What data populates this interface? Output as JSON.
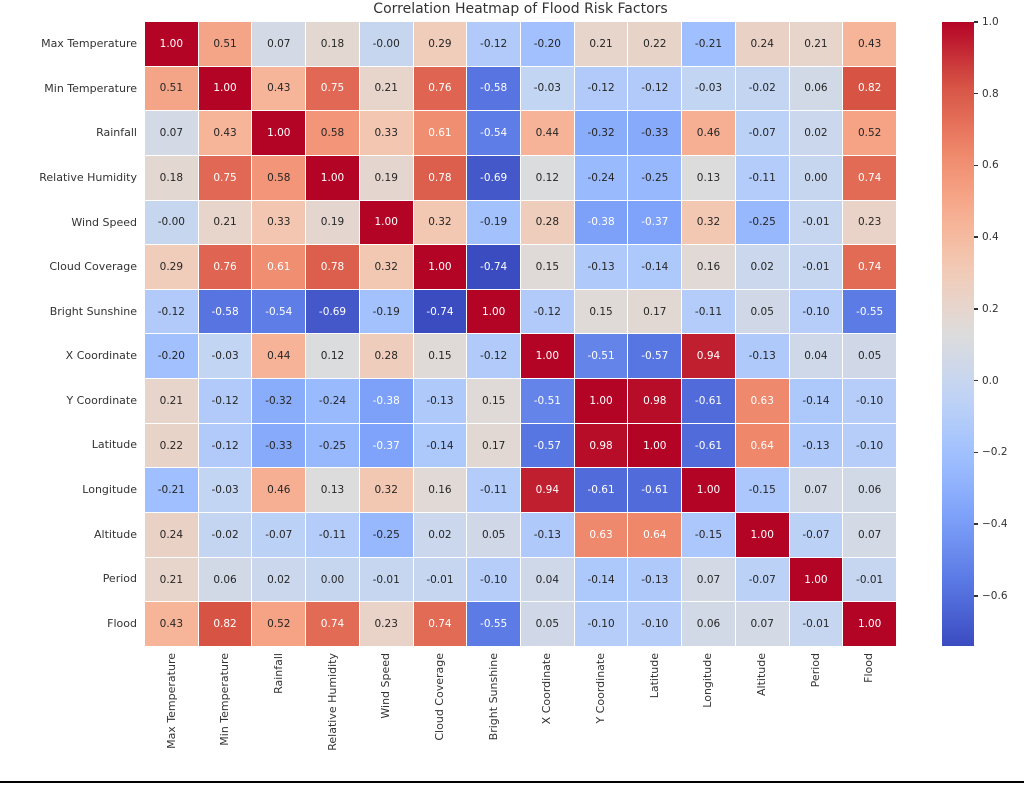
{
  "chart_data": {
    "type": "heatmap",
    "title": "Correlation Heatmap of Flood Risk Factors",
    "categories": [
      "Max Temperature",
      "Min Temperature",
      "Rainfall",
      "Relative Humidity",
      "Wind Speed",
      "Cloud Coverage",
      "Bright Sunshine",
      "X Coordinate",
      "Y Coordinate",
      "Latitude",
      "Longitude",
      "Altitude",
      "Period",
      "Flood"
    ],
    "values": [
      [
        "1.00",
        "0.51",
        "0.07",
        "0.18",
        "-0.00",
        "0.29",
        "-0.12",
        "-0.20",
        "0.21",
        "0.22",
        "-0.21",
        "0.24",
        "0.21",
        "0.43"
      ],
      [
        "0.51",
        "1.00",
        "0.43",
        "0.75",
        "0.21",
        "0.76",
        "-0.58",
        "-0.03",
        "-0.12",
        "-0.12",
        "-0.03",
        "-0.02",
        "0.06",
        "0.82"
      ],
      [
        "0.07",
        "0.43",
        "1.00",
        "0.58",
        "0.33",
        "0.61",
        "-0.54",
        "0.44",
        "-0.32",
        "-0.33",
        "0.46",
        "-0.07",
        "0.02",
        "0.52"
      ],
      [
        "0.18",
        "0.75",
        "0.58",
        "1.00",
        "0.19",
        "0.78",
        "-0.69",
        "0.12",
        "-0.24",
        "-0.25",
        "0.13",
        "-0.11",
        "0.00",
        "0.74"
      ],
      [
        "-0.00",
        "0.21",
        "0.33",
        "0.19",
        "1.00",
        "0.32",
        "-0.19",
        "0.28",
        "-0.38",
        "-0.37",
        "0.32",
        "-0.25",
        "-0.01",
        "0.23"
      ],
      [
        "0.29",
        "0.76",
        "0.61",
        "0.78",
        "0.32",
        "1.00",
        "-0.74",
        "0.15",
        "-0.13",
        "-0.14",
        "0.16",
        "0.02",
        "-0.01",
        "0.74"
      ],
      [
        "-0.12",
        "-0.58",
        "-0.54",
        "-0.69",
        "-0.19",
        "-0.74",
        "1.00",
        "-0.12",
        "0.15",
        "0.17",
        "-0.11",
        "0.05",
        "-0.10",
        "-0.55"
      ],
      [
        "-0.20",
        "-0.03",
        "0.44",
        "0.12",
        "0.28",
        "0.15",
        "-0.12",
        "1.00",
        "-0.51",
        "-0.57",
        "0.94",
        "-0.13",
        "0.04",
        "0.05"
      ],
      [
        "0.21",
        "-0.12",
        "-0.32",
        "-0.24",
        "-0.38",
        "-0.13",
        "0.15",
        "-0.51",
        "1.00",
        "0.98",
        "-0.61",
        "0.63",
        "-0.14",
        "-0.10"
      ],
      [
        "0.22",
        "-0.12",
        "-0.33",
        "-0.25",
        "-0.37",
        "-0.14",
        "0.17",
        "-0.57",
        "0.98",
        "1.00",
        "-0.61",
        "0.64",
        "-0.13",
        "-0.10"
      ],
      [
        "-0.21",
        "-0.03",
        "0.46",
        "0.13",
        "0.32",
        "0.16",
        "-0.11",
        "0.94",
        "-0.61",
        "-0.61",
        "1.00",
        "-0.15",
        "0.07",
        "0.06"
      ],
      [
        "0.24",
        "-0.02",
        "-0.07",
        "-0.11",
        "-0.25",
        "0.02",
        "0.05",
        "-0.13",
        "0.63",
        "0.64",
        "-0.15",
        "1.00",
        "-0.07",
        "0.07"
      ],
      [
        "0.21",
        "0.06",
        "0.02",
        "0.00",
        "-0.01",
        "-0.01",
        "-0.10",
        "0.04",
        "-0.14",
        "-0.13",
        "0.07",
        "-0.07",
        "1.00",
        "-0.01"
      ],
      [
        "0.43",
        "0.82",
        "0.52",
        "0.74",
        "0.23",
        "0.74",
        "-0.55",
        "0.05",
        "-0.10",
        "-0.10",
        "0.06",
        "0.07",
        "-0.01",
        "1.00"
      ]
    ],
    "colormap": "coolwarm",
    "vmin": -0.74,
    "vmax": 1.0,
    "colorbar_ticks": [
      "1.0",
      "0.8",
      "0.6",
      "0.4",
      "0.2",
      "0.0",
      "−0.2",
      "−0.4",
      "−0.6"
    ],
    "legend_position": "right",
    "grid": false,
    "xlabel": "",
    "ylabel": ""
  },
  "style": {
    "colormap_anchors": [
      "#3B4CC0",
      "#5977E3",
      "#7B9FF9",
      "#9EBEFF",
      "#C0D4F5",
      "#DDDCDC",
      "#F2CBB7",
      "#F7AC8E",
      "#EE8468",
      "#D65244",
      "#B40426"
    ],
    "cell_text_dark": "#262626",
    "cell_text_light": "#ffffff",
    "grid_line_color": "#ffffff",
    "title_color": "#333333",
    "label_color": "#333333",
    "bottom_bar_color": "#000000"
  }
}
